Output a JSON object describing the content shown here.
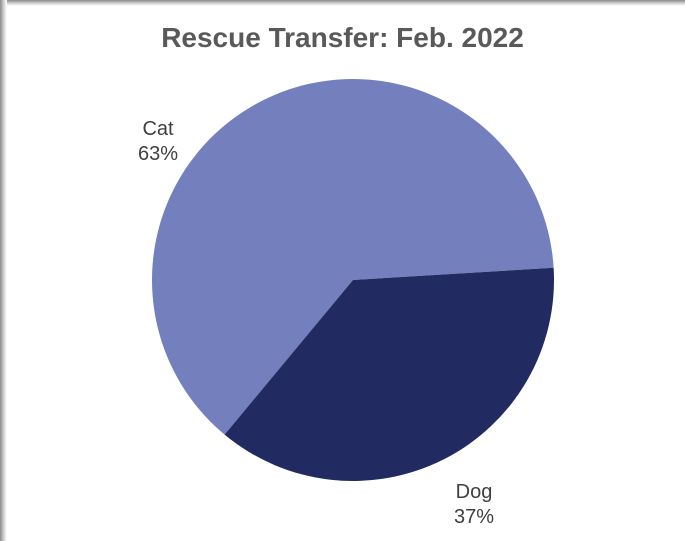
{
  "chart_data": {
    "type": "pie",
    "title": "Rescue Transfer: Feb. 2022",
    "categories": [
      "Cat",
      "Dog"
    ],
    "values": [
      63,
      37
    ],
    "labels": [
      {
        "name": "Cat",
        "percent": "63%"
      },
      {
        "name": "Dog",
        "percent": "37%"
      }
    ],
    "colors": {
      "Cat": "#7480bd",
      "Dog": "#212b62"
    },
    "legend": "none"
  }
}
